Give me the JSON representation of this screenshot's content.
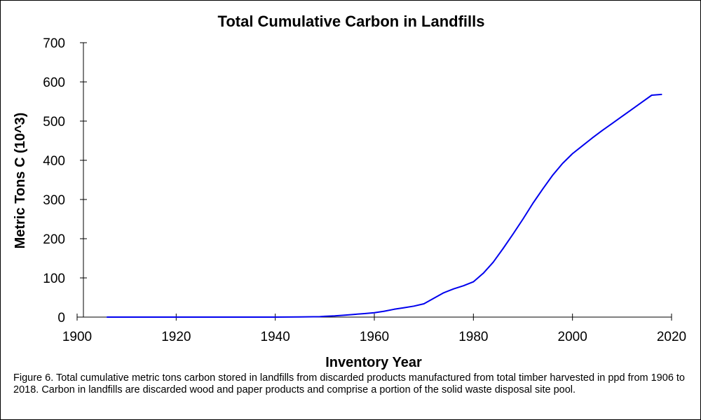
{
  "chart_data": {
    "type": "line",
    "title": "Total Cumulative Carbon in Landfills",
    "xlabel": "Inventory Year",
    "ylabel": "Metric Tons C (10^3)",
    "xlim": [
      1900,
      2020
    ],
    "ylim": [
      0,
      700
    ],
    "xticks": [
      1900,
      1920,
      1940,
      1960,
      1980,
      2000,
      2020
    ],
    "yticks": [
      0,
      100,
      200,
      300,
      400,
      500,
      600,
      700
    ],
    "grid": false,
    "legend": "none",
    "line_color": "#0000ee",
    "series": [
      {
        "x": [
          1906,
          1910,
          1920,
          1930,
          1940,
          1945,
          1949,
          1950,
          1952,
          1954,
          1956,
          1958,
          1960,
          1962,
          1964,
          1966,
          1968,
          1970,
          1972,
          1974,
          1976,
          1978,
          1980,
          1982,
          1984,
          1986,
          1988,
          1990,
          1992,
          1994,
          1996,
          1998,
          2000,
          2002,
          2004,
          2006,
          2008,
          2010,
          2012,
          2014,
          2016,
          2018
        ],
        "y": [
          0,
          0,
          0,
          0,
          0,
          0.5,
          1,
          2,
          3,
          5,
          7,
          9,
          11,
          15,
          20,
          24,
          28,
          34,
          48,
          62,
          72,
          80,
          90,
          112,
          140,
          175,
          212,
          250,
          290,
          327,
          362,
          392,
          417,
          437,
          457,
          476,
          494,
          512,
          530,
          548,
          566,
          568
        ]
      }
    ]
  },
  "caption": "Figure 6. Total cumulative metric tons carbon stored in landfills from discarded products manufactured from total timber harvested in ppd from 1906 to 2018. Carbon in landfills are discarded wood and paper products and comprise a portion of the solid waste disposal site pool."
}
